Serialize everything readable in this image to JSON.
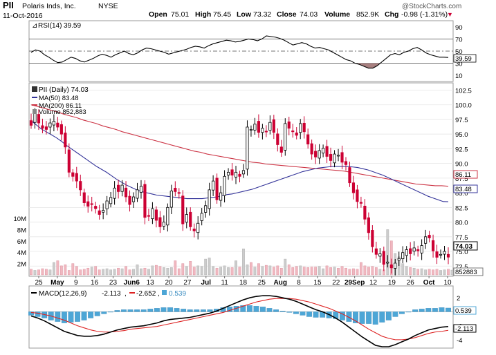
{
  "header": {
    "ticker": "PII",
    "company": "Polaris Inds, Inc.",
    "exchange": "NYSE",
    "date": "11-Oct-2016",
    "open_label": "Open",
    "open": "75.01",
    "high_label": "High",
    "high": "75.45",
    "low_label": "Low",
    "low": "73.32",
    "close_label": "Close",
    "close": "74.03",
    "volume_label": "Volume",
    "volume": "852.9K",
    "chg_label": "Chg",
    "chg": "-0.98 (-1.31%)",
    "chg_arrow": "▼",
    "watermark": "@StockCharts.com"
  },
  "colors": {
    "up": "#ffffff",
    "down": "#cc0033",
    "ma50": "#333399",
    "ma200": "#cc3344",
    "vol_up": "#cccccc",
    "vol_down": "#f0b8c0",
    "rsi": "#000000",
    "rsi_fill": "#a88080",
    "macd": "#000000",
    "signal": "#dd2222",
    "hist": "#4da6d6"
  },
  "chart_data": [
    {
      "type": "line",
      "panel": "rsi",
      "title": "RSI(14) 39.59",
      "label": "RSI(14)",
      "last": "39.59",
      "ylim": [
        0,
        100
      ],
      "yticks": [
        "90",
        "70",
        "50",
        "30",
        "10"
      ],
      "reference_lines": [
        70,
        50,
        30
      ],
      "values": [
        48,
        52,
        50,
        44,
        40,
        35,
        31,
        32,
        36,
        40,
        38,
        34,
        32,
        35,
        38,
        42,
        45,
        43,
        40,
        44,
        47,
        50,
        46,
        44,
        47,
        52,
        55,
        54,
        52,
        50,
        48,
        45,
        47,
        49,
        51,
        53,
        56,
        58,
        57,
        55,
        59,
        62,
        64,
        66,
        68,
        67,
        65,
        66,
        68,
        70,
        69,
        67,
        70,
        75,
        74,
        73,
        71,
        68,
        64,
        60,
        62,
        64,
        62,
        58,
        55,
        56,
        54,
        52,
        48,
        44,
        40,
        36,
        34,
        30,
        28,
        25,
        22,
        22,
        26,
        32,
        38,
        44,
        46,
        44,
        48,
        50,
        54,
        56,
        52,
        47,
        44,
        42,
        40,
        40,
        39.59
      ]
    },
    {
      "type": "candlestick",
      "panel": "price",
      "title": "PII (Daily) 74.03",
      "legend": [
        "PII (Daily) 74.03",
        "MA(50) 83.48",
        "MA(200) 86.11",
        "Volume 852,883"
      ],
      "ylim": [
        71,
        103.5
      ],
      "yticks": [
        "102.5",
        "100.0",
        "97.5",
        "95.0",
        "92.5",
        "90.0",
        "87.5",
        "85.0",
        "82.5",
        "80.0",
        "77.5",
        "75.0",
        "72.5"
      ],
      "x_labels": [
        "25",
        "May",
        "9",
        "16",
        "23",
        "Jun6",
        "13",
        "20",
        "27",
        "Jul",
        "11",
        "18",
        "25",
        "Aug",
        "8",
        "15",
        "22",
        "29Sep",
        "12",
        "19",
        "26",
        "Oct",
        "10"
      ],
      "bold_labels": [
        "May",
        "Jun6",
        "Jul",
        "Aug",
        "29Sep",
        "Oct"
      ],
      "closes": [
        96.5,
        98.5,
        96.9,
        96.0,
        95.8,
        96.9,
        97.2,
        96.2,
        95.0,
        92.8,
        88.5,
        87.8,
        87.0,
        85.5,
        83.3,
        82.7,
        83.0,
        82.3,
        81.3,
        82.0,
        83.6,
        84.2,
        85.8,
        85.2,
        86.3,
        84.3,
        83.0,
        84.3,
        85.5,
        86.1,
        80.8,
        81.0,
        82.3,
        80.3,
        79.2,
        80.0,
        82.5,
        85.3,
        85.2,
        84.9,
        79.7,
        81.3,
        79.2,
        78.5,
        79.8,
        81.5,
        82.8,
        85.5,
        87.0,
        83.8,
        85.0,
        87.8,
        88.5,
        88.0,
        88.5,
        87.8,
        88.8,
        96.2,
        95.8,
        96.7,
        95.3,
        96.0,
        95.5,
        97.0,
        95.3,
        93.2,
        91.9,
        96.8,
        96.0,
        95.4,
        94.8,
        96.8,
        95.4,
        93.3,
        91.6,
        91.1,
        92.2,
        92.6,
        91.2,
        90.5,
        91.6,
        91.4,
        90.2,
        89.8,
        86.7,
        85.0,
        83.5,
        83.2,
        80.5,
        78.2,
        75.8,
        74.5,
        74.6,
        72.8,
        73.2,
        72.2,
        73.0,
        73.8,
        74.8,
        75.3,
        74.6,
        75.6,
        75.1,
        76.0,
        77.5,
        77.3,
        75.1,
        74.0,
        74.5,
        75.0,
        74.03
      ],
      "ma50": [
        97.3,
        96.6,
        95.9,
        95.4,
        94.9,
        94.4,
        93.8,
        93.1,
        92.5,
        91.9,
        91.3,
        90.7,
        90.1,
        89.5,
        89.0,
        88.5,
        87.9,
        87.3,
        86.8,
        86.3,
        85.9,
        85.5,
        85.2,
        85.0,
        84.8,
        84.6,
        84.5,
        84.4,
        84.3,
        84.2,
        84.1,
        84.0,
        84.0,
        84.0,
        84.0,
        84.1,
        84.2,
        84.3,
        84.5,
        84.7,
        84.8,
        85.0,
        85.2,
        85.4,
        85.6,
        85.9,
        86.2,
        86.5,
        86.8,
        87.1,
        87.4,
        87.7,
        88.0,
        88.3,
        88.6,
        88.8,
        89.0,
        89.2,
        89.3,
        89.4,
        89.5,
        89.5,
        89.5,
        89.5,
        89.4,
        89.3,
        89.1,
        88.9,
        88.6,
        88.3,
        88.0,
        87.6,
        87.2,
        86.8,
        86.4,
        86.0,
        85.6,
        85.2,
        84.8,
        84.4,
        84.1,
        83.8,
        83.5,
        83.48
      ],
      "ma200": [
        100.0,
        99.7,
        99.4,
        99.1,
        98.8,
        98.4,
        98.1,
        97.8,
        97.4,
        97.1,
        96.8,
        96.4,
        96.1,
        95.8,
        95.4,
        95.1,
        94.8,
        94.5,
        94.2,
        93.9,
        93.6,
        93.3,
        93.0,
        92.7,
        92.4,
        92.1,
        91.9,
        91.6,
        91.4,
        91.2,
        91.0,
        90.8,
        90.6,
        90.4,
        90.2,
        90.1,
        89.9,
        89.8,
        89.7,
        89.6,
        89.5,
        89.4,
        89.3,
        89.2,
        89.1,
        89.0,
        88.9,
        88.8,
        88.7,
        88.5,
        88.3,
        88.1,
        87.9,
        87.7,
        87.5,
        87.3,
        87.1,
        86.9,
        86.7,
        86.5,
        86.4,
        86.3,
        86.2,
        86.2,
        86.11
      ],
      "ma50_last": "83.48",
      "ma200_last": "86.11",
      "close_last": "74.03"
    },
    {
      "type": "bar",
      "panel": "volume",
      "title": "Volume 852,883",
      "yticks": [
        "10M",
        "8M",
        "6M",
        "4M",
        "2M"
      ],
      "ylim": [
        0,
        10
      ],
      "unit": "millions",
      "last": "852883",
      "values": [
        1.0,
        0.8,
        0.9,
        1.1,
        1.0,
        0.9,
        2.2,
        2.5,
        1.6,
        1.8,
        0.8,
        2.0,
        1.5,
        0.9,
        1.0,
        1.2,
        1.4,
        1.5,
        0.9,
        1.0,
        1.1,
        0.9,
        1.0,
        1.2,
        1.1,
        1.5,
        0.9,
        1.0,
        1.8,
        1.1,
        1.2,
        1.0,
        1.6,
        1.7,
        1.5,
        1.3,
        1.2,
        1.3,
        2.5,
        1.1,
        2.0,
        1.5,
        2.4,
        1.4,
        1.6,
        1.5,
        2.8,
        3.0,
        1.5,
        1.2,
        1.4,
        1.6,
        1.3,
        1.3,
        2.5,
        1.4,
        4.6,
        1.8,
        2.2,
        1.4,
        2.0,
        1.5,
        1.7,
        1.6,
        1.4,
        1.6,
        1.2,
        2.8,
        1.8,
        1.3,
        1.5,
        1.6,
        1.4,
        1.3,
        1.4,
        1.4,
        1.5,
        1.1,
        1.6,
        1.3,
        1.4,
        1.2,
        1.5,
        1.2,
        1.0,
        1.1,
        1.0,
        2.2,
        1.6,
        1.4,
        1.5,
        1.3,
        1.0,
        0.9,
        8.0,
        6.0,
        3.8,
        3.2,
        2.0,
        1.5,
        1.3,
        1.2,
        1.0,
        1.1,
        0.9,
        1.0,
        0.9,
        1.0,
        0.8,
        0.9,
        1.0,
        0.85
      ]
    },
    {
      "type": "line",
      "panel": "macd",
      "title": "MACD(12,26,9) -2.113, -2.652, 0.539",
      "label": "MACD(12,26,9)",
      "macd_last": "-2.113",
      "signal_last": "-2.652",
      "hist_last": "0.539",
      "ylim": [
        -5,
        3.5
      ],
      "yticks": [
        "2",
        "0",
        "-2",
        "-4"
      ],
      "macd": [
        -0.6,
        -0.9,
        -1.3,
        -1.8,
        -2.3,
        -2.8,
        -3.1,
        -3.4,
        -3.5,
        -3.5,
        -3.4,
        -3.2,
        -2.9,
        -2.6,
        -2.4,
        -2.2,
        -2.1,
        -2.0,
        -1.8,
        -1.6,
        -1.3,
        -1.1,
        -1.0,
        -0.9,
        -0.8,
        -0.6,
        -0.4,
        -0.2,
        0.1,
        0.5,
        0.9,
        1.3,
        1.7,
        2.0,
        2.2,
        2.3,
        2.3,
        2.2,
        2.0,
        1.8,
        1.5,
        1.1,
        0.7,
        0.3,
        0.0,
        -0.4,
        -0.9,
        -1.5,
        -2.2,
        -2.9,
        -3.6,
        -4.2,
        -4.8,
        -5.0,
        -5.0,
        -4.7,
        -4.3,
        -3.9,
        -3.4,
        -3.0,
        -2.6,
        -2.4,
        -2.2,
        -2.113
      ],
      "signal": [
        -0.1,
        -0.2,
        -0.4,
        -0.6,
        -0.9,
        -1.2,
        -1.6,
        -2.0,
        -2.3,
        -2.6,
        -2.8,
        -2.9,
        -2.9,
        -2.8,
        -2.7,
        -2.5,
        -2.4,
        -2.3,
        -2.2,
        -2.1,
        -1.9,
        -1.7,
        -1.5,
        -1.3,
        -1.1,
        -0.9,
        -0.7,
        -0.5,
        -0.3,
        -0.1,
        0.2,
        0.5,
        0.8,
        1.1,
        1.4,
        1.6,
        1.8,
        1.9,
        1.9,
        1.9,
        1.8,
        1.6,
        1.4,
        1.1,
        0.8,
        0.5,
        0.1,
        -0.3,
        -0.8,
        -1.3,
        -1.9,
        -2.5,
        -3.0,
        -3.5,
        -3.8,
        -4.0,
        -4.0,
        -3.9,
        -3.7,
        -3.4,
        -3.1,
        -2.9,
        -2.8,
        -2.652
      ]
    }
  ]
}
